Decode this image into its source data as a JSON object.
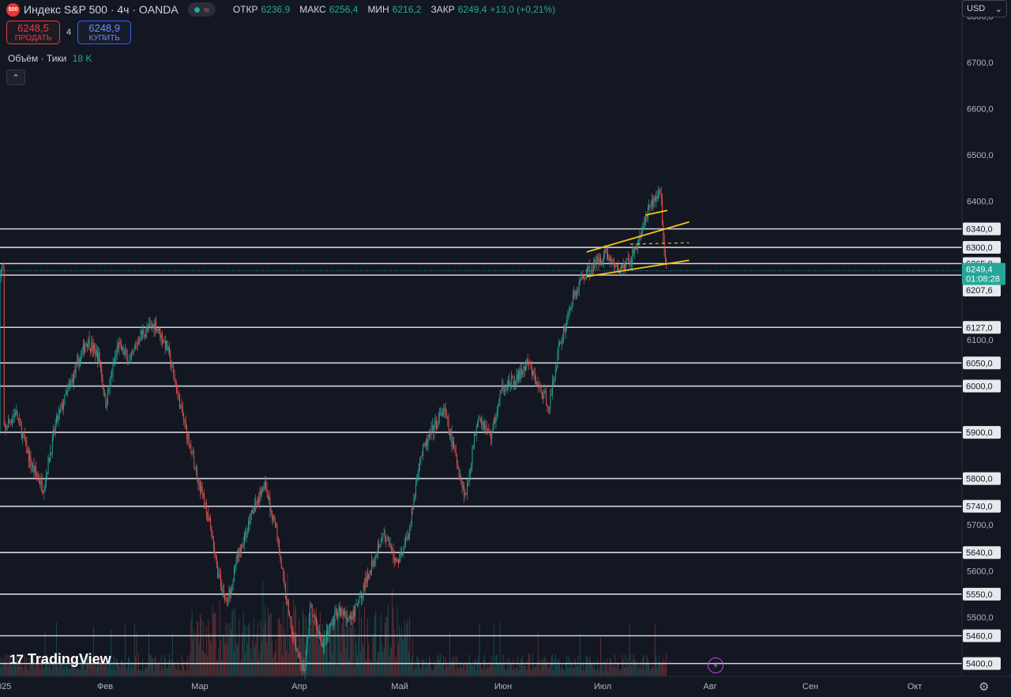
{
  "header": {
    "symbol_badge": "500",
    "title": "Индекс S&P 500 · 4ч · OANDA",
    "wave_glyph": "≈",
    "ohlc": {
      "open_label": "ОТКР",
      "open": "6236,9",
      "high_label": "МАКС",
      "high": "6256,4",
      "low_label": "МИН",
      "low": "6216,2",
      "close_label": "ЗАКР",
      "close": "6249,4",
      "change": "+13,0 (+0,21%)"
    }
  },
  "trade": {
    "sell_price": "6248,5",
    "sell_label": "ПРОДАТЬ",
    "spread": "4",
    "buy_price": "6248,9",
    "buy_label": "КУПИТЬ"
  },
  "volume": {
    "label": "Объём · Тики",
    "value": "18 K"
  },
  "currency": {
    "value": "USD"
  },
  "logo": {
    "text": "TradingView"
  },
  "colors": {
    "background": "#131722",
    "grid_text": "#b2b5be",
    "up": "#26a69a",
    "down": "#ef5350",
    "hline": "#d1d4dc",
    "channel": "#f5c518",
    "price_tag": "#26a69a"
  },
  "chart_data": {
    "type": "candlestick",
    "symbol": "Индекс S&P 500",
    "timeframe": "4ч",
    "x_ticks": [
      "025",
      "Фев",
      "Мар",
      "Апр",
      "Май",
      "Июн",
      "Июл",
      "Авг",
      "Сен",
      "Окт"
    ],
    "y_ticks": [
      "6800,0",
      "6700,0",
      "6600,0",
      "6500,0",
      "6400,0",
      "6300,0",
      "6100,0",
      "6000,0",
      "5900,0",
      "5800,0",
      "5700,0",
      "5600,0",
      "5500,0",
      "5400,0"
    ],
    "ylim": [
      5372,
      6835
    ],
    "horizontal_levels": [
      {
        "value": 6340.0,
        "label": "6340,0"
      },
      {
        "value": 6300.0,
        "label": "6300,0"
      },
      {
        "value": 6265.0,
        "label": "6265,0"
      },
      {
        "value": 6240.0,
        "label": "6240,0"
      },
      {
        "value": 6127.0,
        "label": "6127,0"
      },
      {
        "value": 6050.0,
        "label": "6050,0"
      },
      {
        "value": 6000.0,
        "label": "6000,0"
      },
      {
        "value": 5900.0,
        "label": "5900,0"
      },
      {
        "value": 5800.0,
        "label": "5800,0"
      },
      {
        "value": 5740.0,
        "label": "5740,0"
      },
      {
        "value": 5640.0,
        "label": "5640,0"
      },
      {
        "value": 5550.0,
        "label": "5550,0"
      },
      {
        "value": 5460.0,
        "label": "5460,0"
      },
      {
        "value": 5400.0,
        "label": "5400,0"
      }
    ],
    "extra_axis_label": {
      "value": 6207.6,
      "label": "6207,6"
    },
    "last_price": {
      "value": 6249.4,
      "label": "6249,4",
      "countdown": "01:08:28"
    },
    "price_path": [
      {
        "date": "2025-01-01",
        "price": 5900
      },
      {
        "date": "2025-01-05",
        "price": 5945
      },
      {
        "date": "2025-01-10",
        "price": 5830
      },
      {
        "date": "2025-01-14",
        "price": 5780
      },
      {
        "date": "2025-01-18",
        "price": 5920
      },
      {
        "date": "2025-01-23",
        "price": 6010
      },
      {
        "date": "2025-01-28",
        "price": 6100
      },
      {
        "date": "2025-02-01",
        "price": 6060
      },
      {
        "date": "2025-02-03",
        "price": 5960
      },
      {
        "date": "2025-02-07",
        "price": 6090
      },
      {
        "date": "2025-02-11",
        "price": 6050
      },
      {
        "date": "2025-02-14",
        "price": 6110
      },
      {
        "date": "2025-02-19",
        "price": 6135
      },
      {
        "date": "2025-02-23",
        "price": 6080
      },
      {
        "date": "2025-02-28",
        "price": 5930
      },
      {
        "date": "2025-03-04",
        "price": 5820
      },
      {
        "date": "2025-03-08",
        "price": 5720
      },
      {
        "date": "2025-03-11",
        "price": 5600
      },
      {
        "date": "2025-03-14",
        "price": 5530
      },
      {
        "date": "2025-03-18",
        "price": 5640
      },
      {
        "date": "2025-03-22",
        "price": 5720
      },
      {
        "date": "2025-03-26",
        "price": 5790
      },
      {
        "date": "2025-03-30",
        "price": 5690
      },
      {
        "date": "2025-04-02",
        "price": 5550
      },
      {
        "date": "2025-04-05",
        "price": 5440
      },
      {
        "date": "2025-04-08",
        "price": 5380
      },
      {
        "date": "2025-04-10",
        "price": 5520
      },
      {
        "date": "2025-04-14",
        "price": 5440
      },
      {
        "date": "2025-04-19",
        "price": 5520
      },
      {
        "date": "2025-04-23",
        "price": 5490
      },
      {
        "date": "2025-04-27",
        "price": 5560
      },
      {
        "date": "2025-05-03",
        "price": 5680
      },
      {
        "date": "2025-05-08",
        "price": 5620
      },
      {
        "date": "2025-05-12",
        "price": 5690
      },
      {
        "date": "2025-05-15",
        "price": 5840
      },
      {
        "date": "2025-05-19",
        "price": 5900
      },
      {
        "date": "2025-05-23",
        "price": 5950
      },
      {
        "date": "2025-05-27",
        "price": 5840
      },
      {
        "date": "2025-05-30",
        "price": 5760
      },
      {
        "date": "2025-06-03",
        "price": 5940
      },
      {
        "date": "2025-06-07",
        "price": 5890
      },
      {
        "date": "2025-06-11",
        "price": 6000
      },
      {
        "date": "2025-06-15",
        "price": 6010
      },
      {
        "date": "2025-06-19",
        "price": 6050
      },
      {
        "date": "2025-06-23",
        "price": 5990
      },
      {
        "date": "2025-06-26",
        "price": 5960
      },
      {
        "date": "2025-06-29",
        "price": 6080
      },
      {
        "date": "2025-07-03",
        "price": 6180
      },
      {
        "date": "2025-07-07",
        "price": 6240
      },
      {
        "date": "2025-07-11",
        "price": 6265
      },
      {
        "date": "2025-07-14",
        "price": 6290
      },
      {
        "date": "2025-07-18",
        "price": 6250
      },
      {
        "date": "2025-07-22",
        "price": 6270
      },
      {
        "date": "2025-07-25",
        "price": 6320
      },
      {
        "date": "2025-07-28",
        "price": 6380
      },
      {
        "date": "2025-07-31",
        "price": 6420
      },
      {
        "date": "2025-08-01",
        "price": 6400
      },
      {
        "date": "2025-08-02",
        "price": 6290
      },
      {
        "date": "2025-08-03",
        "price": 6249.4
      }
    ],
    "trend_channel": [
      {
        "from": {
          "date": "2025-07-08",
          "price": 6290
        },
        "to": {
          "date": "2025-08-10",
          "price": 6355
        },
        "style": "solid"
      },
      {
        "from": {
          "date": "2025-07-22",
          "price": 6307
        },
        "to": {
          "date": "2025-08-10",
          "price": 6310
        },
        "style": "dashed"
      },
      {
        "from": {
          "date": "2025-07-08",
          "price": 6237
        },
        "to": {
          "date": "2025-08-10",
          "price": 6272
        },
        "style": "solid"
      },
      {
        "from": {
          "date": "2025-07-27",
          "price": 6370
        },
        "to": {
          "date": "2025-08-03",
          "price": 6380
        },
        "style": "solid"
      }
    ]
  }
}
